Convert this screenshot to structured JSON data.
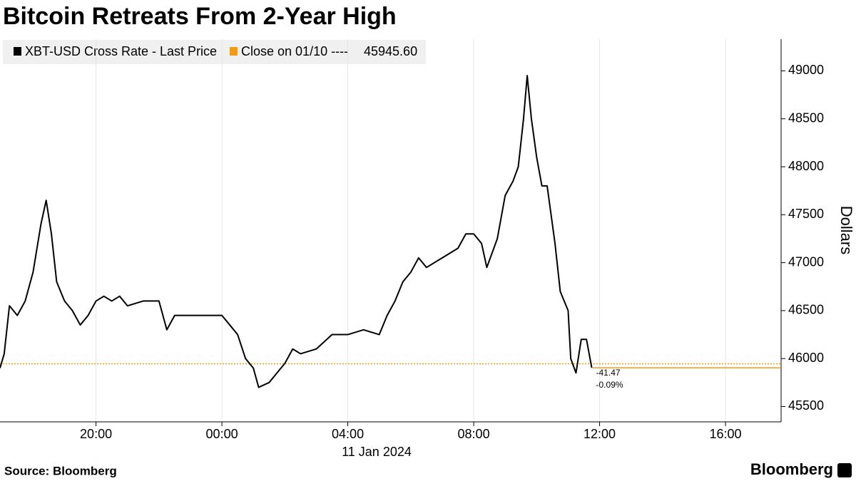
{
  "chart_data": {
    "type": "line",
    "title": "Bitcoin Retreats From 2-Year High",
    "y_label": "Dollars",
    "x_sublabel": "11 Jan 2024",
    "source": "Source: Bloomberg",
    "brand": "Bloomberg",
    "grid": true,
    "legend": "top-left",
    "x": [
      "2024-01-10T16:57",
      "2024-01-10T17:05",
      "2024-01-10T17:15",
      "2024-01-10T17:30",
      "2024-01-10T17:45",
      "2024-01-10T18:00",
      "2024-01-10T18:15",
      "2024-01-10T18:25",
      "2024-01-10T18:35",
      "2024-01-10T18:45",
      "2024-01-10T19:00",
      "2024-01-10T19:15",
      "2024-01-10T19:30",
      "2024-01-10T19:45",
      "2024-01-10T20:00",
      "2024-01-10T20:15",
      "2024-01-10T20:30",
      "2024-01-10T20:45",
      "2024-01-10T21:00",
      "2024-01-10T21:30",
      "2024-01-10T22:00",
      "2024-01-10T22:15",
      "2024-01-10T22:30",
      "2024-01-10T23:00",
      "2024-01-10T23:30",
      "2024-01-11T00:00",
      "2024-01-11T00:15",
      "2024-01-11T00:30",
      "2024-01-11T00:45",
      "2024-01-11T01:00",
      "2024-01-11T01:10",
      "2024-01-11T01:30",
      "2024-01-11T01:45",
      "2024-01-11T02:00",
      "2024-01-11T02:15",
      "2024-01-11T02:30",
      "2024-01-11T03:00",
      "2024-01-11T03:30",
      "2024-01-11T04:00",
      "2024-01-11T04:30",
      "2024-01-11T05:00",
      "2024-01-11T05:15",
      "2024-01-11T05:30",
      "2024-01-11T05:45",
      "2024-01-11T06:00",
      "2024-01-11T06:15",
      "2024-01-11T06:30",
      "2024-01-11T07:00",
      "2024-01-11T07:30",
      "2024-01-11T07:45",
      "2024-01-11T08:00",
      "2024-01-11T08:15",
      "2024-01-11T08:25",
      "2024-01-11T08:45",
      "2024-01-11T09:00",
      "2024-01-11T09:15",
      "2024-01-11T09:25",
      "2024-01-11T09:35",
      "2024-01-11T09:42",
      "2024-01-11T09:50",
      "2024-01-11T10:00",
      "2024-01-11T10:10",
      "2024-01-11T10:20",
      "2024-01-11T10:35",
      "2024-01-11T10:45",
      "2024-01-11T11:00",
      "2024-01-11T11:05",
      "2024-01-11T11:15",
      "2024-01-11T11:25",
      "2024-01-11T11:35",
      "2024-01-11T11:45"
    ],
    "series": [
      {
        "name": "XBT-USD Cross Rate - Last Price",
        "color": "#000000",
        "values": [
          45900,
          46050,
          46550,
          46450,
          46600,
          46900,
          47400,
          47650,
          47300,
          46800,
          46600,
          46500,
          46350,
          46450,
          46600,
          46650,
          46600,
          46650,
          46550,
          46600,
          46600,
          46300,
          46450,
          46450,
          46450,
          46450,
          46350,
          46250,
          46000,
          45900,
          45700,
          45750,
          45850,
          45950,
          46100,
          46050,
          46100,
          46250,
          46250,
          46300,
          46250,
          46450,
          46600,
          46800,
          46900,
          47050,
          46950,
          47050,
          47150,
          47300,
          47300,
          47200,
          46950,
          47250,
          47700,
          47850,
          48000,
          48500,
          48950,
          48500,
          48100,
          47800,
          47800,
          47200,
          46700,
          46500,
          46000,
          45850,
          46200,
          46200,
          45904.13
        ]
      }
    ],
    "reference": {
      "name": "Close on 01/10 ----",
      "value": 45945.6,
      "value_label": "45945.60",
      "color": "#f39c12"
    },
    "change_labels": [
      "-41.47",
      "-0.09%"
    ],
    "xlim": [
      "2024-01-10T16:57",
      "2024-01-11T17:46"
    ],
    "xticks": [
      {
        "value": "2024-01-10T20:00",
        "label": "20:00"
      },
      {
        "value": "2024-01-11T00:00",
        "label": "00:00"
      },
      {
        "value": "2024-01-11T04:00",
        "label": "04:00"
      },
      {
        "value": "2024-01-11T08:00",
        "label": "08:00"
      },
      {
        "value": "2024-01-11T12:00",
        "label": "12:00"
      },
      {
        "value": "2024-01-11T16:00",
        "label": "16:00"
      }
    ],
    "ylim": [
      45340,
      49330
    ],
    "yticks": [
      45500,
      46000,
      46500,
      47000,
      47500,
      48000,
      48500,
      49000
    ]
  }
}
